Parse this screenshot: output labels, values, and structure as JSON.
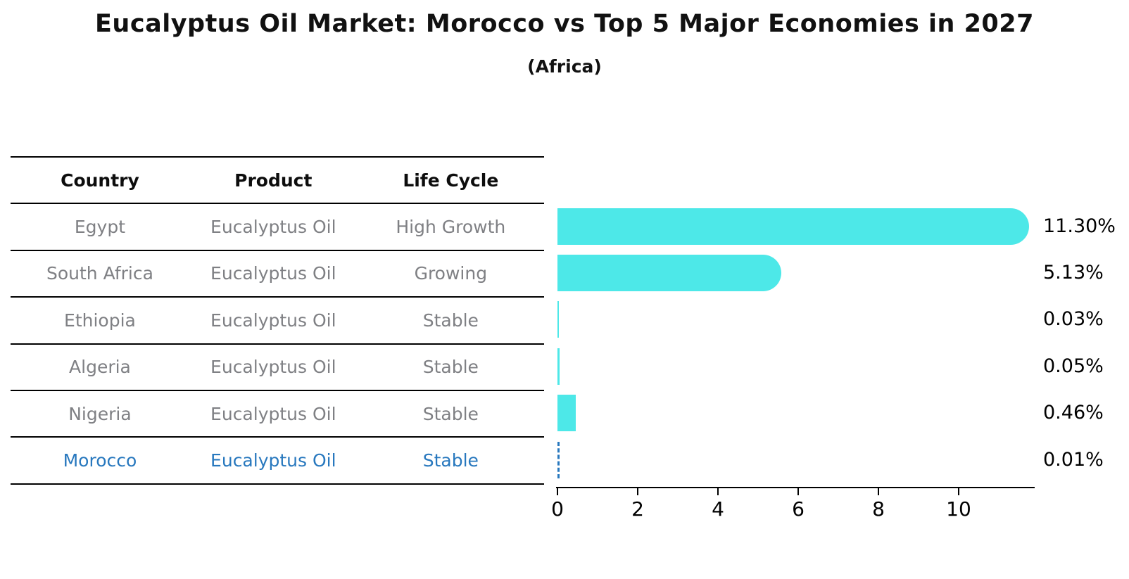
{
  "title": "Eucalyptus Oil Market: Morocco vs Top 5 Major Economies in 2027",
  "subtitle": "(Africa)",
  "colors": {
    "bar_fill": "#4DE8E8",
    "highlight_blue": "#2878BE",
    "table_text_gray": "#7F8084",
    "axis_black": "#000000"
  },
  "table": {
    "headers": [
      "Country",
      "Product",
      "Life Cycle"
    ],
    "rows": [
      {
        "country": "Egypt",
        "product": "Eucalyptus Oil",
        "life_cycle": "High Growth",
        "highlight": false
      },
      {
        "country": "South Africa",
        "product": "Eucalyptus Oil",
        "life_cycle": "Growing",
        "highlight": false
      },
      {
        "country": "Ethiopia",
        "product": "Eucalyptus Oil",
        "life_cycle": "Stable",
        "highlight": false
      },
      {
        "country": "Algeria",
        "product": "Eucalyptus Oil",
        "life_cycle": "Stable",
        "highlight": false
      },
      {
        "country": "Nigeria",
        "product": "Eucalyptus Oil",
        "life_cycle": "Stable",
        "highlight": false
      },
      {
        "country": "Morocco",
        "product": "Eucalyptus Oil",
        "life_cycle": "Stable",
        "highlight": true
      }
    ]
  },
  "chart_data": {
    "type": "bar",
    "orientation": "horizontal",
    "title": "Eucalyptus Oil Market: Morocco vs Top 5 Major Economies in 2027 (Africa)",
    "categories": [
      "Egypt",
      "South Africa",
      "Ethiopia",
      "Algeria",
      "Nigeria",
      "Morocco"
    ],
    "values": [
      11.3,
      5.13,
      0.03,
      0.05,
      0.46,
      0.01
    ],
    "value_labels": [
      "11.30%",
      "5.13%",
      "0.03%",
      "0.05%",
      "0.46%",
      "0.01%"
    ],
    "highlight_index": 5,
    "highlight_style": "dashed-blue-outline",
    "x_ticks": [
      0,
      2,
      4,
      6,
      8,
      10
    ],
    "xlim": [
      0,
      11.9
    ],
    "grid": false,
    "legend": false
  }
}
